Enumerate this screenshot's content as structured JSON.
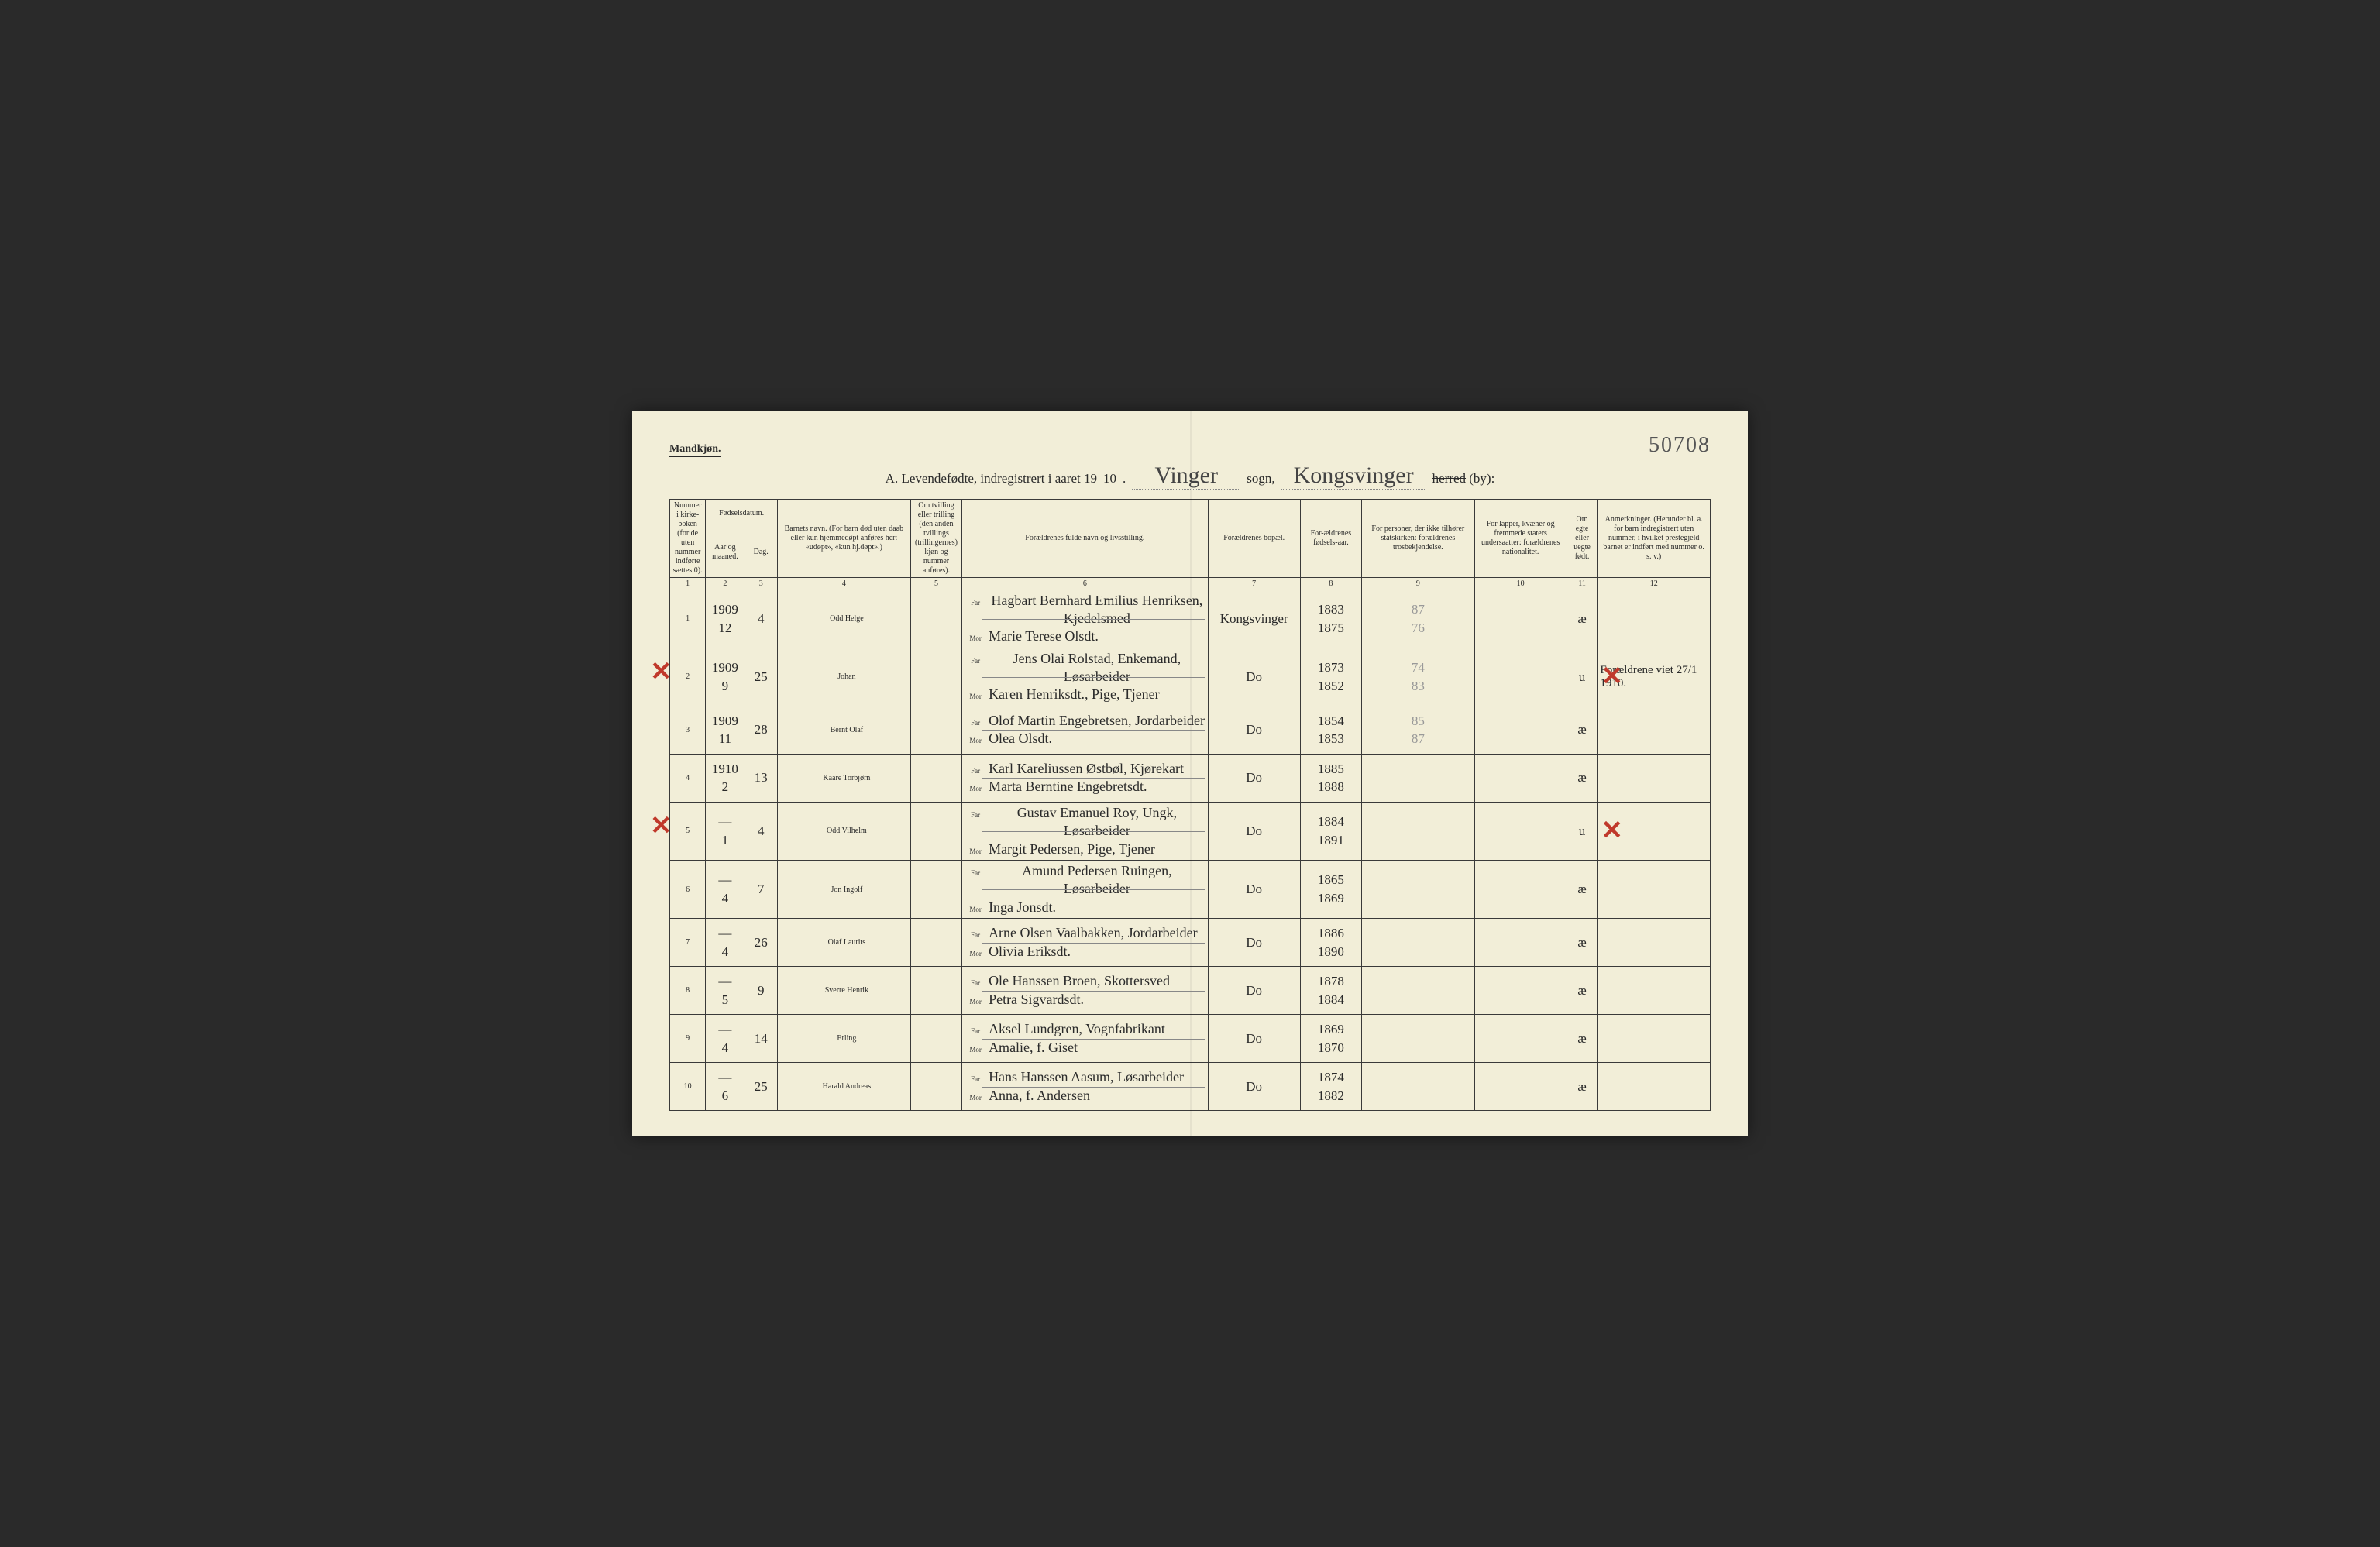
{
  "header": {
    "mandkjon": "Mandkjøn.",
    "page_number": "50708",
    "title_prefix": "A.  Levendefødte, indregistrert i aaret 19",
    "year_suffix": "10",
    "sogn_value": "Vinger",
    "sogn_label": "sogn,",
    "herred_value": "Kongsvinger",
    "herred_strike": "herred",
    "herred_suffix": "(by):"
  },
  "columns": {
    "c1": "Nummer i kirke-boken (for de uten nummer indførte sættes 0).",
    "c2a": "Fødselsdatum.",
    "c2": "Aar og maaned.",
    "c3": "Dag.",
    "c4": "Barnets navn.\n(For barn død uten daab eller kun hjemmedøpt anføres her: «udøpt», «kun hj.døpt».)",
    "c5": "Om tvilling eller trilling (den anden tvillings (trillingernes) kjøn og nummer anføres).",
    "c6": "Forældrenes fulde navn og livsstilling.",
    "c7": "Forældrenes bopæl.",
    "c8": "For-ældrenes fødsels-aar.",
    "c9": "For personer, der ikke tilhører statskirken: forældrenes trosbekjendelse.",
    "c10": "For lapper, kvæner og fremmede staters undersaatter: forældrenes nationalitet.",
    "c11": "Om egte eller uegte født.",
    "c12": "Anmerkninger.\n(Herunder bl. a. for barn indregistrert uten nummer, i hvilket prestegjeld barnet er indført med nummer o. s. v.)"
  },
  "colnums": [
    "1",
    "2",
    "3",
    "4",
    "5",
    "6",
    "7",
    "8",
    "9",
    "10",
    "11",
    "12"
  ],
  "rows": [
    {
      "num": "1",
      "aar": "1909",
      "maaned": "12",
      "dag": "4",
      "name": "Odd Helge",
      "far": "Hagbart Bernhard Emilius Henriksen, Kjedelsmed",
      "mor": "Marie Terese Olsdt.",
      "bopael": "Kongsvinger",
      "y1": "1883",
      "y2": "1875",
      "y1b": "87",
      "y2b": "76",
      "egte": "æ",
      "anm": "",
      "redLeft": false,
      "redRight": false
    },
    {
      "num": "2",
      "aar": "1909",
      "maaned": "9",
      "dag": "25",
      "name": "Johan",
      "far": "Jens Olai Rolstad, Enkemand, Løsarbeider",
      "mor": "Karen Henriksdt., Pige, Tjener",
      "bopael": "Do",
      "y1": "1873",
      "y2": "1852",
      "y1b": "74",
      "y2b": "83",
      "egte": "u",
      "anm": "Forældrene viet 27/1 1910.",
      "redLeft": true,
      "redRight": true
    },
    {
      "num": "3",
      "aar": "1909",
      "maaned": "11",
      "dag": "28",
      "name": "Bernt Olaf",
      "far": "Olof Martin Engebretsen, Jordarbeider",
      "mor": "Olea Olsdt.",
      "bopael": "Do",
      "y1": "1854",
      "y2": "1853",
      "y1b": "85",
      "y2b": "87",
      "egte": "æ",
      "anm": "",
      "redLeft": false,
      "redRight": false
    },
    {
      "num": "4",
      "aar": "1910",
      "maaned": "2",
      "dag": "13",
      "name": "Kaare Torbjørn",
      "far": "Karl Kareliussen Østbøl, Kjørekart",
      "mor": "Marta Berntine Engebretsdt.",
      "bopael": "Do",
      "y1": "1885",
      "y2": "1888",
      "y1b": "",
      "y2b": "",
      "egte": "æ",
      "anm": "",
      "redLeft": false,
      "redRight": false
    },
    {
      "num": "5",
      "aar": "—",
      "maaned": "1",
      "dag": "4",
      "name": "Odd Vilhelm",
      "far": "Gustav Emanuel Roy, Ungk, Løsarbeider",
      "mor": "Margit Pedersen, Pige, Tjener",
      "bopael": "Do",
      "y1": "1884",
      "y2": "1891",
      "y1b": "",
      "y2b": "",
      "egte": "u",
      "anm": "",
      "redLeft": true,
      "redRight": true
    },
    {
      "num": "6",
      "aar": "—",
      "maaned": "4",
      "dag": "7",
      "name": "Jon Ingolf",
      "far": "Amund Pedersen Ruingen, Løsarbeider",
      "mor": "Inga Jonsdt.",
      "bopael": "Do",
      "y1": "1865",
      "y2": "1869",
      "y1b": "",
      "y2b": "",
      "egte": "æ",
      "anm": "",
      "redLeft": false,
      "redRight": false
    },
    {
      "num": "7",
      "aar": "—",
      "maaned": "4",
      "dag": "26",
      "name": "Olaf Laurits",
      "far": "Arne Olsen Vaalbakken, Jordarbeider",
      "mor": "Olivia Eriksdt.",
      "bopael": "Do",
      "y1": "1886",
      "y2": "1890",
      "y1b": "",
      "y2b": "",
      "egte": "æ",
      "anm": "",
      "redLeft": false,
      "redRight": false
    },
    {
      "num": "8",
      "aar": "—",
      "maaned": "5",
      "dag": "9",
      "name": "Sverre Henrik",
      "far": "Ole Hanssen Broen, Skottersved",
      "mor": "Petra Sigvardsdt.",
      "bopael": "Do",
      "y1": "1878",
      "y2": "1884",
      "y1b": "",
      "y2b": "",
      "egte": "æ",
      "anm": "",
      "redLeft": false,
      "redRight": false
    },
    {
      "num": "9",
      "aar": "—",
      "maaned": "4",
      "dag": "14",
      "name": "Erling",
      "far": "Aksel Lundgren, Vognfabrikant",
      "mor": "Amalie, f. Giset",
      "bopael": "Do",
      "y1": "1869",
      "y2": "1870",
      "y1b": "",
      "y2b": "",
      "egte": "æ",
      "anm": "",
      "redLeft": false,
      "redRight": false
    },
    {
      "num": "10",
      "aar": "—",
      "maaned": "6",
      "dag": "25",
      "name": "Harald Andreas",
      "far": "Hans Hanssen Aasum, Løsarbeider",
      "mor": "Anna, f. Andersen",
      "bopael": "Do",
      "y1": "1874",
      "y2": "1882",
      "y1b": "",
      "y2b": "",
      "egte": "æ",
      "anm": "",
      "redLeft": false,
      "redRight": false
    }
  ],
  "labels": {
    "far": "Far",
    "mor": "Mor"
  },
  "colors": {
    "paper": "#f2eed8",
    "ink": "#2a2a2a",
    "script": "#3a3a3a",
    "red": "#c0392b",
    "rule": "#3a3a3a"
  }
}
